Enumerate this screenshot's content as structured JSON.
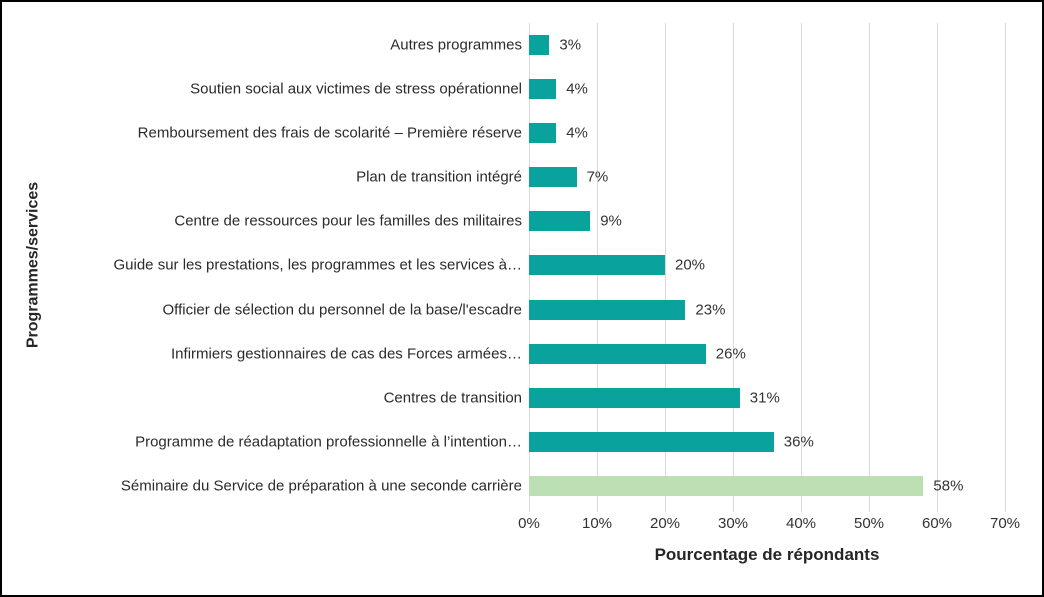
{
  "chart_data": {
    "type": "bar",
    "orientation": "horizontal",
    "title": "",
    "xlabel": "Pourcentage de répondants",
    "ylabel": "Programmes/services",
    "xlim": [
      0,
      70
    ],
    "x_ticks": [
      0,
      10,
      20,
      30,
      40,
      50,
      60,
      70
    ],
    "x_tick_labels": [
      "0%",
      "10%",
      "20%",
      "30%",
      "40%",
      "50%",
      "60%",
      "70%"
    ],
    "grid": "vertical",
    "legend": "none",
    "categories": [
      "Autres programmes",
      "Soutien social aux victimes de stress opérationnel",
      "Remboursement des frais de scolarité – Première réserve",
      "Plan de transition intégré",
      "Centre de ressources pour les familles des militaires",
      "Guide sur les prestations, les programmes et les services à…",
      "Officier de sélection du personnel de la base/l'escadre",
      "Infirmiers gestionnaires de cas des Forces armées…",
      "Centres de transition",
      "Programme de réadaptation professionnelle à l’intention…",
      "Séminaire du Service de préparation à une seconde carrière"
    ],
    "values": [
      3,
      4,
      4,
      7,
      9,
      20,
      23,
      26,
      31,
      36,
      58
    ],
    "value_labels": [
      "3%",
      "4%",
      "4%",
      "7%",
      "9%",
      "20%",
      "23%",
      "26%",
      "31%",
      "36%",
      "58%"
    ],
    "bar_colors": [
      "#0aa29d",
      "#0aa29d",
      "#0aa29d",
      "#0aa29d",
      "#0aa29d",
      "#0aa29d",
      "#0aa29d",
      "#0aa29d",
      "#0aa29d",
      "#0aa29d",
      "#bce0b4"
    ],
    "colors": {
      "bar_default": "#0aa29d",
      "bar_highlight": "#bce0b4",
      "gridline": "#d9d9d9",
      "text": "#333333",
      "border": "#000000"
    }
  }
}
